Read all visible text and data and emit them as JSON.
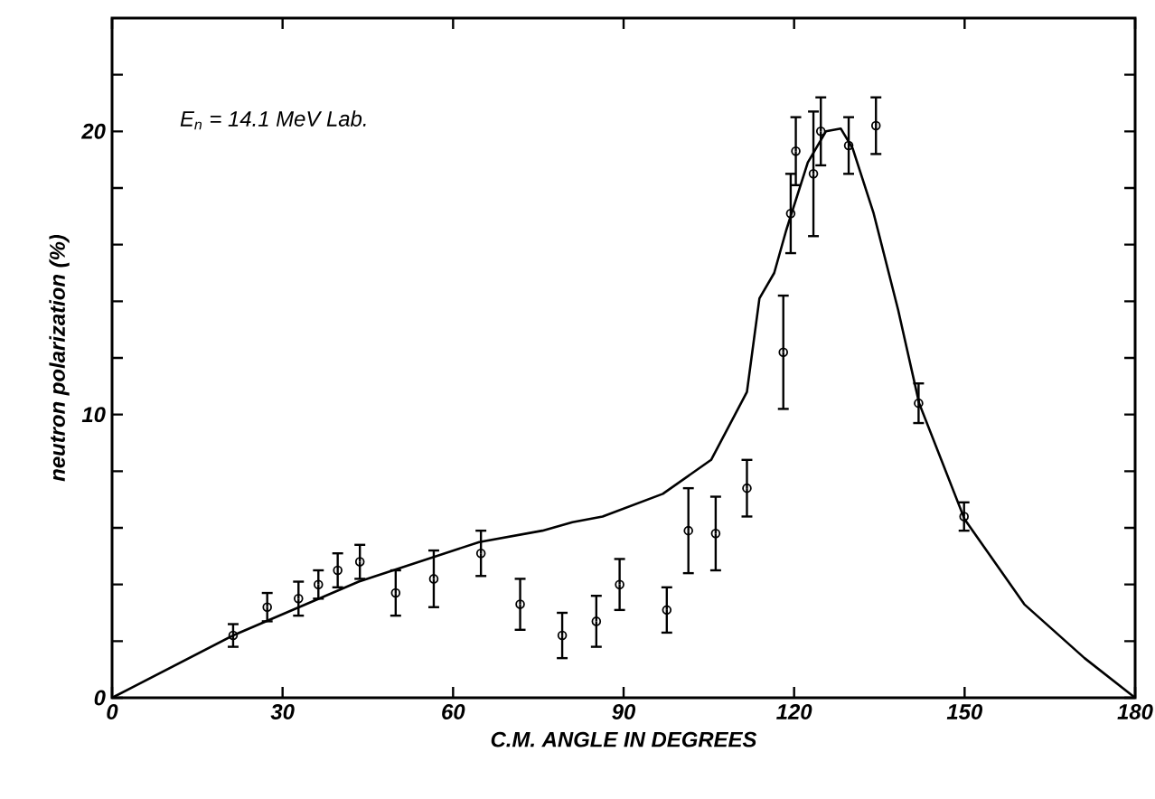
{
  "chart_data": {
    "type": "scatter",
    "xlabel": "C.M. ANGLE IN DEGREES",
    "ylabel": "neutron polarization (%)",
    "annotations": [
      "*E*$_{n}$ = 14.1 MeV Lab."
    ],
    "xlim": [
      0,
      180
    ],
    "xticks": [
      0,
      30,
      60,
      90,
      120,
      150,
      180
    ],
    "ylim": [
      0,
      24
    ],
    "yticks": [
      0,
      {
        "value": 2,
        "label": null
      },
      {
        "value": 4,
        "label": null
      },
      {
        "value": 6,
        "label": null
      },
      {
        "value": 8,
        "label": null
      },
      10,
      {
        "value": 12,
        "label": null
      },
      {
        "value": 14,
        "label": null
      },
      {
        "value": 16,
        "label": null
      },
      {
        "value": 18,
        "label": null
      },
      20,
      {
        "value": 22,
        "label": null
      }
    ],
    "series": [
      {
        "color": "#000000",
        "marker": "circle",
        "x": [
          21.3,
          27.3,
          32.8,
          36.3,
          39.7,
          43.6,
          49.9,
          56.6,
          64.9,
          71.8,
          79.2,
          85.2,
          89.3,
          97.6,
          101.4,
          106.2,
          111.7,
          118.1,
          119.4,
          120.3,
          123.4,
          124.7,
          129.6,
          134.4,
          141.9,
          149.9
        ],
        "values": [
          2.2,
          3.2,
          3.5,
          4.0,
          4.5,
          4.8,
          3.7,
          4.2,
          5.1,
          3.3,
          2.2,
          2.7,
          4.0,
          3.1,
          5.9,
          5.8,
          7.4,
          12.2,
          17.1,
          19.3,
          18.5,
          20.0,
          19.5,
          20.2,
          10.4,
          6.4
        ],
        "errors": [
          0.4,
          0.5,
          0.6,
          0.5,
          0.6,
          0.6,
          0.8,
          1.0,
          0.8,
          0.9,
          0.8,
          0.9,
          0.9,
          0.8,
          1.5,
          1.3,
          1.0,
          2.0,
          1.4,
          1.2,
          2.2,
          1.2,
          1.0,
          1.0,
          0.7,
          0.5
        ]
      },
      {
        "type": "line",
        "color": "#000000",
        "marker": "none",
        "line_style": "solid",
        "x": [
          0,
          21.3,
          43.4,
          64.6,
          75.7,
          81.0,
          86.3,
          96.9,
          105.4,
          111.7,
          113.9,
          116.5,
          118.6,
          122.4,
          125.6,
          128.2,
          130.3,
          134.0,
          138.3,
          142.0,
          150.0,
          160.5,
          171.1,
          180
        ],
        "values": [
          0,
          2.2,
          4.1,
          5.5,
          5.9,
          6.2,
          6.4,
          7.2,
          8.4,
          10.8,
          14.1,
          15.0,
          16.5,
          18.9,
          20.0,
          20.1,
          19.4,
          17.1,
          13.7,
          10.4,
          6.3,
          3.3,
          1.4,
          0
        ]
      }
    ]
  }
}
